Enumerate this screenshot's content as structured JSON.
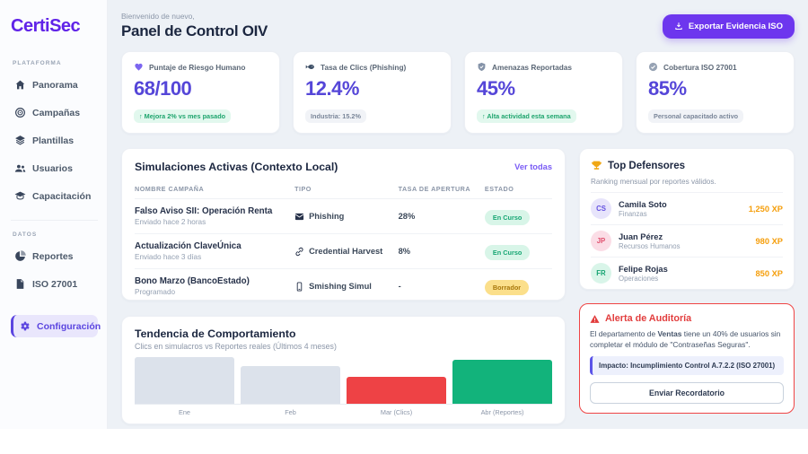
{
  "brand": {
    "logo": "CertiSec",
    "accent": "#6023e8"
  },
  "sidebar": {
    "sections": [
      {
        "title": "PLATAFORMA",
        "items": [
          {
            "label": "Panorama",
            "icon": "home-icon"
          },
          {
            "label": "Campañas",
            "icon": "target-icon"
          },
          {
            "label": "Plantillas",
            "icon": "layers-icon"
          },
          {
            "label": "Usuarios",
            "icon": "users-icon"
          },
          {
            "label": "Capacitación",
            "icon": "graduation-cap-icon"
          }
        ]
      },
      {
        "title": "DATOS",
        "items": [
          {
            "label": "Reportes",
            "icon": "pie-chart-icon"
          },
          {
            "label": "ISO 27001",
            "icon": "file-icon"
          }
        ]
      }
    ],
    "active": {
      "label": "Configuración",
      "icon": "gear-icon"
    }
  },
  "header": {
    "welcome": "Bienvenido de nuevo,",
    "title": "Panel de Control OIV",
    "export_button": "Exportar Evidencia ISO"
  },
  "stats": [
    {
      "label": "Puntaje de Riesgo Humano",
      "value": "68/100",
      "badge": "↑ Mejora 2% vs mes pasado",
      "icon": "heart-icon",
      "icon_color": "#7c66f0"
    },
    {
      "label": "Tasa de Clics (Phishing)",
      "value": "12.4%",
      "badge": "Industria: 15.2%",
      "icon": "fish-icon",
      "icon_color": "#3d4f66"
    },
    {
      "label": "Amenazas Reportadas",
      "value": "45%",
      "badge": "↑ Alta actividad esta semana",
      "icon": "shield-icon",
      "icon_color": "#8593a8"
    },
    {
      "label": "Cobertura ISO 27001",
      "value": "85%",
      "badge": "Personal capacitado activo",
      "icon": "check-circle-icon",
      "icon_color": "#97a3b4"
    }
  ],
  "simulations": {
    "title": "Simulaciones Activas (Contexto Local)",
    "link": "Ver todas",
    "columns": [
      "NOMBRE CAMPAÑA",
      "TIPO",
      "TASA DE APERTURA",
      "ESTADO"
    ],
    "rows": [
      {
        "name": "Falso Aviso SII: Operación Renta",
        "subtitle": "Enviado hace 2 horas",
        "type": "Phishing",
        "type_icon": "envelope-icon",
        "open_rate": "28%",
        "status": "En Curso"
      },
      {
        "name": "Actualización ClaveÚnica",
        "subtitle": "Enviado hace 3 días",
        "type": "Credential Harvest",
        "type_icon": "link-icon",
        "open_rate": "8%",
        "status": "En Curso"
      },
      {
        "name": "Bono Marzo (BancoEstado)",
        "subtitle": "Programado",
        "type": "Smishing Simul",
        "type_icon": "phone-icon",
        "open_rate": "-",
        "status": "Borrador"
      }
    ]
  },
  "defenders": {
    "title": "Top Defensores",
    "subtitle": "Ranking mensual por reportes válidos.",
    "items": [
      {
        "initials": "CS",
        "name": "Camila Soto",
        "dept": "Finanzas",
        "xp": "1,250 XP",
        "avatar_bg": "#e7e4fb",
        "avatar_color": "#6350e0"
      },
      {
        "initials": "JP",
        "name": "Juan Pérez",
        "dept": "Recursos Humanos",
        "xp": "980 XP",
        "avatar_bg": "#fbdde6",
        "avatar_color": "#e0506e"
      },
      {
        "initials": "FR",
        "name": "Felipe Rojas",
        "dept": "Operaciones",
        "xp": "850 XP",
        "avatar_bg": "#d9f5e9",
        "avatar_color": "#15a371"
      }
    ],
    "xp_color": "#f59e0b"
  },
  "alert": {
    "title": "Alerta de Auditoría",
    "body_prefix": "El departamento de ",
    "body_bold": "Ventas",
    "body_suffix": " tiene un 40% de usuarios sin completar el módulo de \"Contraseñas Seguras\".",
    "impact": "Impacto: Incumplimiento Control A.7.2.2 (ISO 27001)",
    "button": "Enviar Recordatorio",
    "border_color": "#ef4444"
  },
  "chart_data": {
    "type": "bar",
    "title": "Tendencia de Comportamiento",
    "subtitle": "Clics en simulacros vs Reportes reales (Últimos 4 meses)",
    "categories": [
      "Ene",
      "Feb",
      "Mar (Clics)",
      "Abr (Reportes)"
    ],
    "values": [
      52,
      42,
      30,
      49
    ],
    "value_unit": "relative bar height, px (no numeric axis shown)",
    "colors": [
      "#dce2eb",
      "#dce2eb",
      "#ee4245",
      "#12b37b"
    ],
    "xlabel": "",
    "ylabel": "",
    "grid": false,
    "legend": false
  }
}
